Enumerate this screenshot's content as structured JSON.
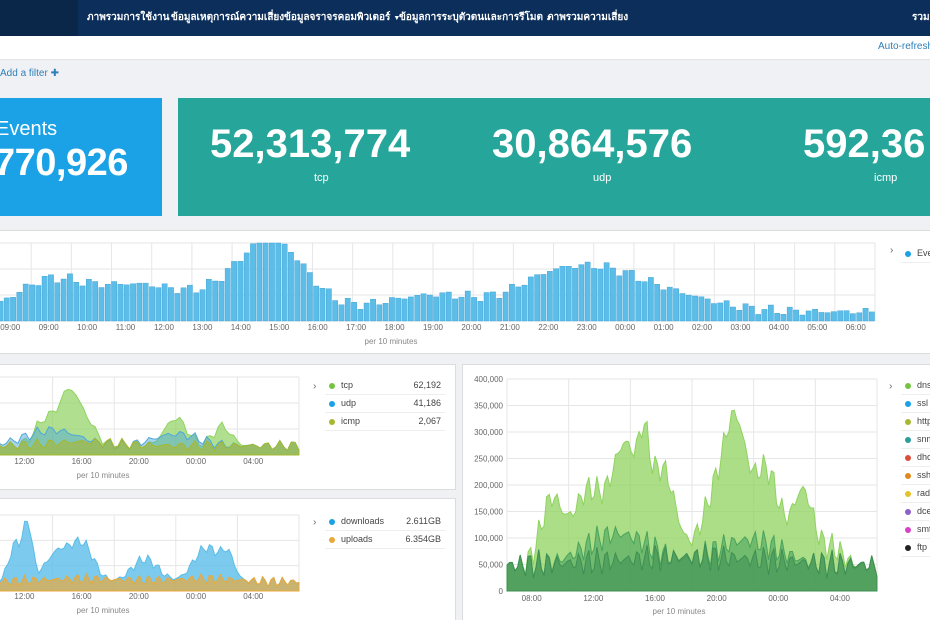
{
  "nav": {
    "items": [
      {
        "label": "ภาพรวมการใช้งาน",
        "has_caret": false
      },
      {
        "label": "ข้อมูลเหตุการณ์ความเสี่ยง",
        "has_caret": false
      },
      {
        "label": "ข้อมูลจราจรคอมพิวเตอร์",
        "has_caret": true
      },
      {
        "label": "ข้อมูลการระบุตัวตนและการรีโมต",
        "has_caret": true
      },
      {
        "label": "ภาพรวมความเสี่ยง",
        "has_caret": false
      }
    ],
    "right_label": "รวม"
  },
  "toolbar": {
    "auto_refresh": "Auto-refresh",
    "add_filter": "Add a filter"
  },
  "metrics": {
    "events": {
      "label": "Events",
      "value": "770,926"
    },
    "protocols": [
      {
        "value": "52,313,774",
        "label": "tcp"
      },
      {
        "value": "30,864,576",
        "label": "udp"
      },
      {
        "value": "592,36",
        "label": "icmp"
      }
    ]
  },
  "events_chart": {
    "axis_label": "per 10 minutes",
    "ticks": [
      "09:00",
      "09:00",
      "10:00",
      "11:00",
      "12:00",
      "13:00",
      "14:00",
      "15:00",
      "16:00",
      "17:00",
      "18:00",
      "19:00",
      "20:00",
      "21:00",
      "22:00",
      "23:00",
      "00:00",
      "01:00",
      "02:00",
      "03:00",
      "04:00",
      "05:00",
      "06:00"
    ],
    "legend": [
      {
        "name": "Eve",
        "color": "#1aa1e6"
      }
    ]
  },
  "protocol_chart": {
    "axis_label": "per 10 minutes",
    "ticks": [
      "12:00",
      "16:00",
      "20:00",
      "00:00",
      "04:00"
    ],
    "legend": [
      {
        "name": "tcp",
        "value": "62,192",
        "color": "#74c441"
      },
      {
        "name": "udp",
        "value": "41,186",
        "color": "#1aa1e6"
      },
      {
        "name": "icmp",
        "value": "2,067",
        "color": "#a6b82e"
      }
    ]
  },
  "traffic_chart": {
    "axis_label": "per 10 minutes",
    "ticks": [
      "12:00",
      "16:00",
      "20:00",
      "00:00",
      "04:00"
    ],
    "legend": [
      {
        "name": "downloads",
        "value": "2.611GB",
        "color": "#1aa1e6"
      },
      {
        "name": "uploads",
        "value": "6.354GB",
        "color": "#e8a93a"
      }
    ]
  },
  "service_chart": {
    "axis_label": "per 10 minutes",
    "y_ticks": [
      "400,000",
      "350,000",
      "300,000",
      "250,000",
      "200,000",
      "150,000",
      "100,000",
      "50,000",
      "0"
    ],
    "ticks": [
      "08:00",
      "12:00",
      "16:00",
      "20:00",
      "00:00",
      "04:00"
    ],
    "legend": [
      {
        "name": "dns",
        "color": "#74c441"
      },
      {
        "name": "ssl",
        "color": "#1aa1e6"
      },
      {
        "name": "http",
        "color": "#a6b82e"
      },
      {
        "name": "snm",
        "color": "#2a9d9f"
      },
      {
        "name": "dhc",
        "color": "#d94f3d"
      },
      {
        "name": "ssh",
        "color": "#e08a1e"
      },
      {
        "name": "rad",
        "color": "#e6c229"
      },
      {
        "name": "dce",
        "color": "#8e5fc7"
      },
      {
        "name": "smt",
        "color": "#d941c7"
      },
      {
        "name": "ftp",
        "color": "#222222"
      }
    ]
  }
}
